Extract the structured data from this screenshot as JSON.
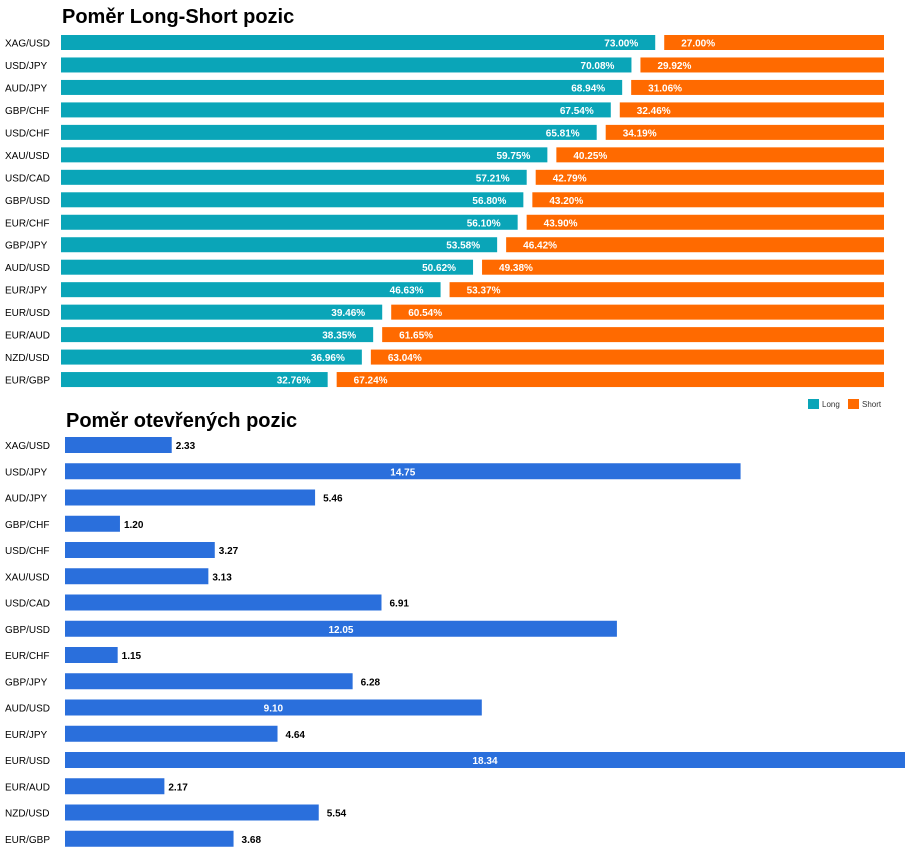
{
  "colors": {
    "long": "#0aa5b8",
    "short": "#ff6a00",
    "open": "#2a6fdc",
    "label_inside": "#ffffff",
    "label_outside": "#000000"
  },
  "chart_data": [
    {
      "type": "bar",
      "orientation": "horizontal",
      "stacked": true,
      "title": "Poměr Long-Short pozic",
      "categories": [
        "XAG/USD",
        "USD/JPY",
        "AUD/JPY",
        "GBP/CHF",
        "USD/CHF",
        "XAU/USD",
        "USD/CAD",
        "GBP/USD",
        "EUR/CHF",
        "GBP/JPY",
        "AUD/USD",
        "EUR/JPY",
        "EUR/USD",
        "EUR/AUD",
        "NZD/USD",
        "EUR/GBP"
      ],
      "series": [
        {
          "name": "Long",
          "values": [
            73.0,
            70.08,
            68.94,
            67.54,
            65.81,
            59.75,
            57.21,
            56.8,
            56.1,
            53.58,
            50.62,
            46.63,
            39.46,
            38.35,
            36.96,
            32.76
          ]
        },
        {
          "name": "Short",
          "values": [
            27.0,
            29.92,
            31.06,
            32.46,
            34.19,
            40.25,
            42.79,
            43.2,
            43.9,
            46.42,
            49.38,
            53.37,
            60.54,
            61.65,
            63.04,
            67.24
          ]
        }
      ],
      "value_format": "%",
      "xlim": [
        0,
        100
      ],
      "legend": "bottom-right",
      "grid": false
    },
    {
      "type": "bar",
      "orientation": "horizontal",
      "title": "Poměr otevřených pozic",
      "categories": [
        "XAG/USD",
        "USD/JPY",
        "AUD/JPY",
        "GBP/CHF",
        "USD/CHF",
        "XAU/USD",
        "USD/CAD",
        "GBP/USD",
        "EUR/CHF",
        "GBP/JPY",
        "AUD/USD",
        "EUR/JPY",
        "EUR/USD",
        "EUR/AUD",
        "NZD/USD",
        "EUR/GBP"
      ],
      "values": [
        2.33,
        14.75,
        5.46,
        1.2,
        3.27,
        3.13,
        6.91,
        12.05,
        1.15,
        6.28,
        9.1,
        4.64,
        18.34,
        2.17,
        5.54,
        3.68
      ],
      "xlim": [
        0,
        18.34
      ],
      "grid": false
    }
  ]
}
